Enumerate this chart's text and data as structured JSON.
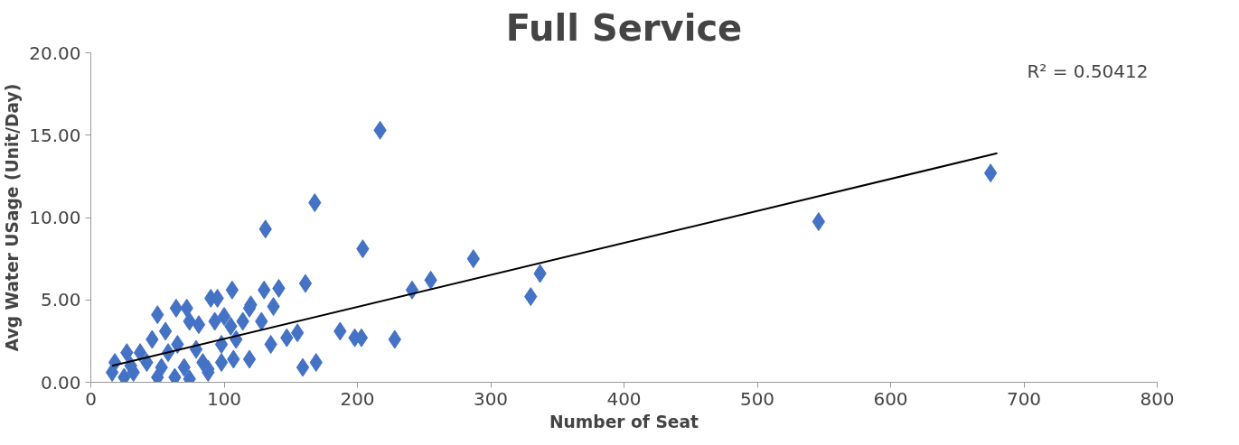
{
  "chart_data": {
    "type": "scatter",
    "title": "Full Service",
    "xlabel": "Number of Seat",
    "ylabel": "Avg Water USage (Unit/Day)",
    "annotations": [
      "R² = 0.50412"
    ],
    "xlim": [
      0,
      800
    ],
    "xticks": [
      0,
      100,
      200,
      300,
      400,
      500,
      600,
      700,
      800
    ],
    "ylim": [
      0,
      20
    ],
    "yticks": [
      {
        "value": 0,
        "label": "0.00"
      },
      {
        "value": 5,
        "label": "5.00"
      },
      {
        "value": 10,
        "label": "10.00"
      },
      {
        "value": 15,
        "label": "15.00"
      },
      {
        "value": 20,
        "label": "20.00"
      }
    ],
    "grid": false,
    "marker": "diamond",
    "series": [
      {
        "color": "#4472c4",
        "x": [
          217,
          168,
          131,
          204,
          287,
          255,
          241,
          337,
          330,
          546,
          675,
          161,
          141,
          187,
          198,
          203,
          228,
          155,
          147,
          159,
          169,
          16,
          27,
          25,
          32,
          50,
          64,
          72,
          90,
          95,
          106,
          130,
          50,
          63,
          74,
          88,
          46,
          56,
          65,
          74,
          79,
          93,
          98,
          105,
          109,
          119,
          119,
          128,
          137,
          135,
          37,
          42,
          18,
          58,
          70,
          84,
          98,
          107,
          53,
          30,
          120,
          114,
          100,
          81,
          88
        ],
        "values": [
          15.3,
          10.9,
          9.3,
          8.1,
          7.5,
          6.2,
          5.6,
          6.6,
          5.2,
          9.75,
          12.7,
          6.0,
          5.7,
          3.1,
          2.7,
          2.7,
          2.6,
          3.0,
          2.7,
          0.9,
          1.2,
          0.6,
          1.8,
          0.3,
          0.6,
          4.1,
          4.5,
          4.5,
          5.1,
          5.1,
          5.6,
          5.6,
          0.3,
          0.3,
          0.2,
          0.6,
          2.6,
          3.1,
          2.3,
          3.7,
          2.0,
          3.7,
          2.3,
          3.4,
          2.6,
          1.4,
          4.5,
          3.7,
          4.6,
          2.3,
          1.8,
          1.2,
          1.2,
          1.8,
          0.9,
          1.2,
          1.2,
          1.4,
          0.9,
          1.0,
          4.7,
          3.7,
          4.0,
          3.5,
          0.8
        ]
      },
      {
        "type": "line",
        "color": "#000000",
        "marker": "none",
        "x": [
          16,
          680
        ],
        "values": [
          1.0,
          13.9
        ]
      }
    ]
  }
}
